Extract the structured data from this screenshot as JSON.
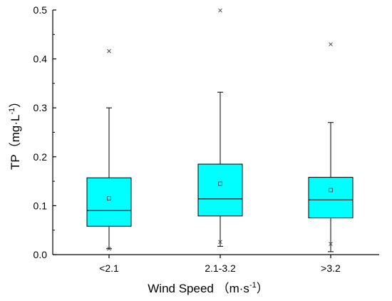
{
  "chart_data": {
    "type": "box",
    "title": "",
    "xlabel": {
      "base": "Wind Speed （m·s",
      "sup": "-1",
      "tail": "）"
    },
    "ylabel": {
      "base": "TP（mg·L",
      "sup": "-1",
      "tail": "）"
    },
    "categories": [
      "<2.1",
      "2.1-3.2",
      ">3.2"
    ],
    "ylim": [
      0,
      0.5
    ],
    "yticks": [
      "0.0",
      "0.1",
      "0.2",
      "0.3",
      "0.4",
      "0.5"
    ],
    "box_color": "#00ffff",
    "boxes": [
      {
        "category": "<2.1",
        "whisker_low": 0.012,
        "q1": 0.058,
        "median": 0.09,
        "q3": 0.157,
        "whisker_high": 0.3,
        "mean": 0.115,
        "outliers_max": [
          0.416
        ],
        "outliers_min": [
          0.012
        ]
      },
      {
        "category": "2.1-3.2",
        "whisker_low": 0.017,
        "q1": 0.079,
        "median": 0.114,
        "q3": 0.185,
        "whisker_high": 0.332,
        "mean": 0.145,
        "outliers_max": [
          0.499
        ],
        "outliers_min": [
          0.026
        ]
      },
      {
        "category": ">3.2",
        "whisker_low": 0.006,
        "q1": 0.075,
        "median": 0.112,
        "q3": 0.158,
        "whisker_high": 0.27,
        "mean": 0.132,
        "outliers_max": [
          0.43
        ],
        "outliers_min": [
          0.022
        ]
      }
    ]
  }
}
